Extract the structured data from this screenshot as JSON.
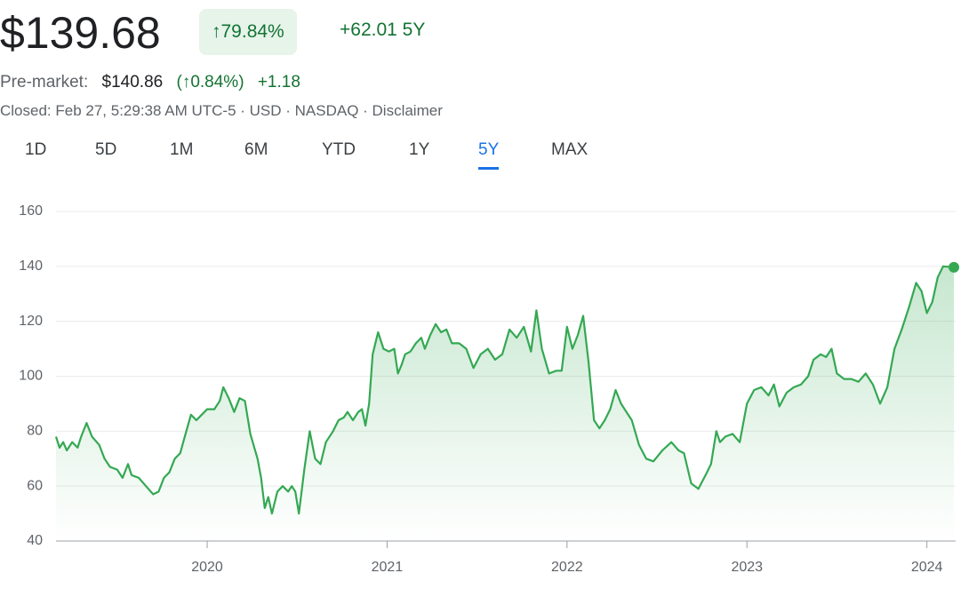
{
  "header": {
    "price": "$139.68",
    "change_pct": "↑79.84%",
    "change_abs": "+62.01 5Y",
    "premarket_label": "Pre-market:",
    "premarket_price": "$140.86",
    "premarket_pct": "(↑0.84%)",
    "premarket_abs": "+1.18",
    "status": "Closed: Feb 27, 5:29:38 AM UTC-5 · USD · NASDAQ · Disclaimer"
  },
  "tabs": {
    "items": [
      "1D",
      "5D",
      "1M",
      "6M",
      "YTD",
      "1Y",
      "5Y",
      "MAX"
    ],
    "active": 6
  },
  "chart_data": {
    "type": "line",
    "color": "#34a853",
    "grid": true,
    "xlim": [
      2019.16,
      2024.15
    ],
    "xticks": [
      2020,
      2021,
      2022,
      2023,
      2024
    ],
    "ylim": [
      40,
      160
    ],
    "yticks": [
      40,
      60,
      80,
      100,
      120,
      140,
      160
    ],
    "x": [
      2019.16,
      2019.18,
      2019.2,
      2019.22,
      2019.25,
      2019.28,
      2019.3,
      2019.33,
      2019.36,
      2019.4,
      2019.43,
      2019.46,
      2019.5,
      2019.53,
      2019.56,
      2019.58,
      2019.62,
      2019.66,
      2019.7,
      2019.73,
      2019.76,
      2019.79,
      2019.82,
      2019.85,
      2019.88,
      2019.91,
      2019.94,
      2019.97,
      2020.0,
      2020.04,
      2020.07,
      2020.09,
      2020.12,
      2020.15,
      2020.18,
      2020.21,
      2020.24,
      2020.28,
      2020.3,
      2020.32,
      2020.34,
      2020.36,
      2020.39,
      2020.42,
      2020.45,
      2020.47,
      2020.49,
      2020.51,
      2020.54,
      2020.57,
      2020.6,
      2020.63,
      2020.66,
      2020.7,
      2020.73,
      2020.76,
      2020.78,
      2020.81,
      2020.84,
      2020.86,
      2020.88,
      2020.9,
      2020.92,
      2020.95,
      2020.98,
      2021.01,
      2021.04,
      2021.06,
      2021.08,
      2021.1,
      2021.13,
      2021.16,
      2021.19,
      2021.21,
      2021.24,
      2021.27,
      2021.3,
      2021.33,
      2021.36,
      2021.4,
      2021.44,
      2021.48,
      2021.52,
      2021.56,
      2021.6,
      2021.64,
      2021.68,
      2021.72,
      2021.76,
      2021.8,
      2021.83,
      2021.86,
      2021.9,
      2021.94,
      2021.97,
      2022.0,
      2022.03,
      2022.06,
      2022.09,
      2022.12,
      2022.15,
      2022.18,
      2022.21,
      2022.24,
      2022.27,
      2022.3,
      2022.33,
      2022.36,
      2022.4,
      2022.44,
      2022.48,
      2022.53,
      2022.58,
      2022.62,
      2022.65,
      2022.69,
      2022.73,
      2022.77,
      2022.8,
      2022.83,
      2022.85,
      2022.88,
      2022.92,
      2022.96,
      2023.0,
      2023.04,
      2023.08,
      2023.12,
      2023.15,
      2023.18,
      2023.22,
      2023.26,
      2023.3,
      2023.34,
      2023.37,
      2023.41,
      2023.44,
      2023.47,
      2023.5,
      2023.54,
      2023.58,
      2023.62,
      2023.66,
      2023.7,
      2023.74,
      2023.78,
      2023.82,
      2023.86,
      2023.9,
      2023.94,
      2023.97,
      2024.0,
      2024.03,
      2024.06,
      2024.09,
      2024.15
    ],
    "values": [
      78,
      74,
      76,
      73,
      76,
      74,
      78,
      83,
      78,
      75,
      70,
      67,
      66,
      63,
      68,
      64,
      63,
      60,
      57,
      58,
      63,
      65,
      70,
      72,
      79,
      86,
      84,
      86,
      88,
      88,
      91,
      96,
      92,
      87,
      92,
      91,
      79,
      70,
      63,
      52,
      56,
      50,
      58,
      60,
      58,
      60,
      58,
      50,
      66,
      80,
      70,
      68,
      76,
      80,
      84,
      85,
      87,
      84,
      87,
      88,
      82,
      90,
      108,
      116,
      110,
      109,
      110,
      101,
      104,
      108,
      109,
      112,
      114,
      110,
      115,
      119,
      116,
      117,
      112,
      112,
      110,
      103,
      108,
      110,
      106,
      108,
      117,
      114,
      118,
      109,
      124,
      110,
      101,
      102,
      102,
      118,
      110,
      115,
      122,
      105,
      84,
      81,
      84,
      88,
      95,
      90,
      87,
      84,
      75,
      70,
      69,
      73,
      76,
      73,
      72,
      61,
      59,
      64,
      68,
      80,
      76,
      78,
      79,
      76,
      90,
      95,
      96,
      93,
      97,
      89,
      94,
      96,
      97,
      100,
      106,
      108,
      107,
      110,
      101,
      99,
      99,
      98,
      101,
      97,
      90,
      96,
      110,
      117,
      125,
      134,
      131,
      123,
      127,
      136,
      140,
      139.68
    ]
  }
}
